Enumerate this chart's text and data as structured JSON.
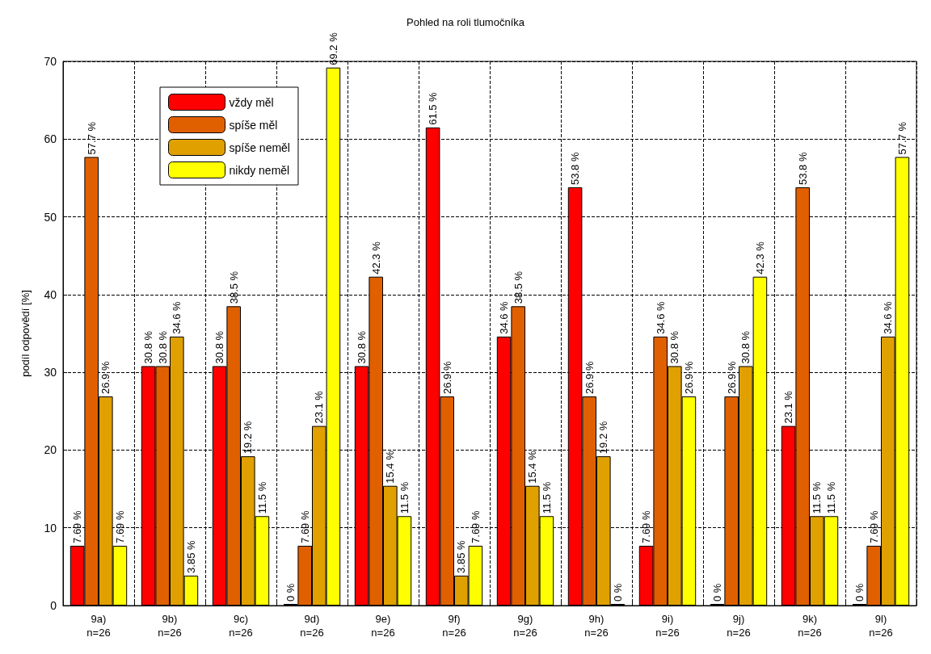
{
  "chart_data": {
    "type": "bar",
    "title": "Pohled na roli tlumočníka",
    "ylabel": "podíl odpovědí [%]",
    "categories": [
      "9a)\nn=26",
      "9b)\nn=26",
      "9c)\nn=26",
      "9d)\nn=26",
      "9e)\nn=26",
      "9f)\nn=26",
      "9g)\nn=26",
      "9h)\nn=26",
      "9i)\nn=26",
      "9j)\nn=26",
      "9k)\nn=26",
      "9l)\nn=26"
    ],
    "series": [
      {
        "name": "vždy měl",
        "color": "#ff0000",
        "values": [
          7.69,
          30.8,
          30.8,
          0,
          30.8,
          61.5,
          34.6,
          53.8,
          7.69,
          0,
          23.1,
          0
        ],
        "value_labels": [
          "7.69 %",
          "30.8 %",
          "30.8 %",
          "0 %",
          "30.8 %",
          "61.5 %",
          "34.6 %",
          "53.8 %",
          "7.69 %",
          "0 %",
          "23.1 %",
          "0 %"
        ]
      },
      {
        "name": "spíše měl",
        "color": "#e06000",
        "values": [
          57.7,
          30.8,
          38.5,
          7.69,
          42.3,
          26.9,
          38.5,
          26.9,
          34.6,
          26.9,
          53.8,
          7.69
        ],
        "value_labels": [
          "57.7 %",
          "30.8 %",
          "38.5 %",
          "7.69 %",
          "42.3 %",
          "26.9 %",
          "38.5 %",
          "26.9 %",
          "34.6 %",
          "26.9 %",
          "53.8 %",
          "7.69 %"
        ]
      },
      {
        "name": "spíše neměl",
        "color": "#e0a000",
        "values": [
          26.9,
          34.6,
          19.2,
          23.1,
          15.4,
          3.85,
          15.4,
          19.2,
          30.8,
          30.8,
          11.5,
          34.6
        ],
        "value_labels": [
          "26.9 %",
          "34.6 %",
          "19.2 %",
          "23.1 %",
          "15.4 %",
          "3.85 %",
          "15.4 %",
          "19.2 %",
          "30.8 %",
          "30.8 %",
          "11.5 %",
          "34.6 %"
        ]
      },
      {
        "name": "nikdy neměl",
        "color": "#ffff00",
        "values": [
          7.69,
          3.85,
          11.5,
          69.2,
          11.5,
          7.69,
          11.5,
          0,
          26.9,
          42.3,
          11.5,
          57.7
        ],
        "value_labels": [
          "7.69 %",
          "3.85 %",
          "11.5 %",
          "69.2 %",
          "11.5 %",
          "7.69 %",
          "11.5 %",
          "0 %",
          "26.9 %",
          "42.3 %",
          "11.5 %",
          "57.7 %"
        ]
      }
    ],
    "ylim": [
      0,
      70
    ],
    "yticks": [
      0,
      10,
      20,
      30,
      40,
      50,
      60,
      70
    ],
    "grid": true,
    "legend": "top left"
  }
}
